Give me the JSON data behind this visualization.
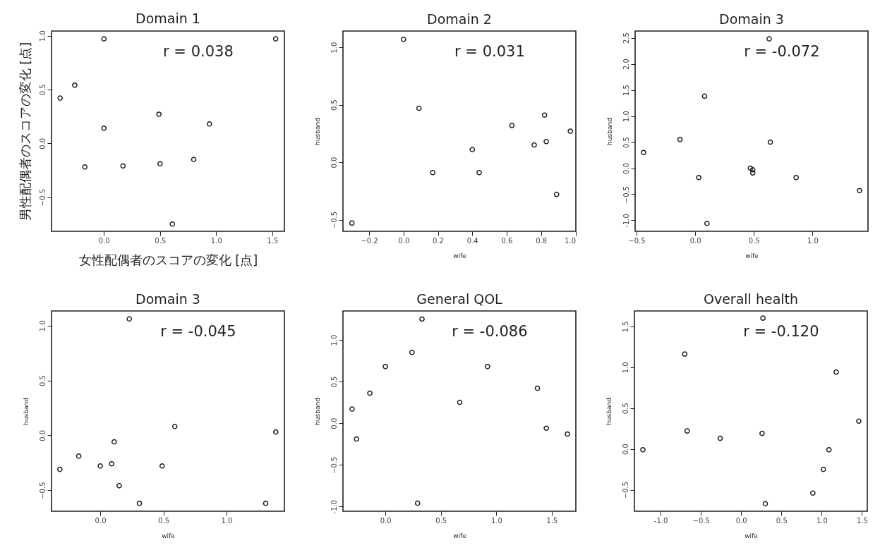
{
  "chart_data": [
    {
      "type": "scatter",
      "title": "Domain 1",
      "xlabel": "女性配偶者のスコアの変化 [点]",
      "ylabel": "男性配偶者のスコアの変化 [点]",
      "color": "#231f20",
      "marker": "circle",
      "grid": false,
      "annotations": [
        "r = 0.038"
      ],
      "x": [
        -0.39,
        -0.26,
        0.0,
        0.0,
        -0.17,
        0.17,
        0.49,
        0.5,
        0.61,
        0.8,
        0.94,
        1.53
      ],
      "values": [
        0.42,
        0.54,
        0.97,
        0.14,
        -0.22,
        -0.21,
        0.27,
        -0.19,
        -0.75,
        -0.15,
        0.18,
        0.97
      ],
      "xlim": [
        -0.467,
        1.608
      ],
      "xticks": [
        {
          "value": 0,
          "label": "0.0"
        },
        0.5,
        {
          "value": 1,
          "label": "1.0"
        },
        1.5
      ],
      "ylim": [
        -0.817,
        1.043
      ],
      "yticks": [
        -0.5,
        {
          "value": 0,
          "label": "0.0"
        },
        0.5,
        {
          "value": 1,
          "label": "1.0"
        }
      ]
    },
    {
      "type": "scatter",
      "title": "Domain 2",
      "xlabel": "wife",
      "ylabel": "husband",
      "color": "#231f20",
      "marker": "circle",
      "grid": false,
      "annotations": [
        "r = 0.031"
      ],
      "x": [
        -0.3,
        0.0,
        0.09,
        0.17,
        0.4,
        0.44,
        0.63,
        0.76,
        0.82,
        0.83,
        0.89,
        0.97
      ],
      "values": [
        -0.53,
        1.07,
        0.47,
        -0.09,
        0.11,
        -0.09,
        0.32,
        0.15,
        0.41,
        0.18,
        -0.28,
        0.27
      ],
      "xlim": [
        -0.352,
        1.002
      ],
      "xticks": [
        -0.2,
        {
          "value": 0,
          "label": "0.0"
        },
        0.2,
        0.4,
        0.6,
        0.8,
        {
          "value": 1,
          "label": "1.0"
        }
      ],
      "ylim": [
        -0.601,
        1.142
      ],
      "yticks": [
        -0.5,
        {
          "value": 0,
          "label": "0.0"
        },
        0.5,
        {
          "value": 1,
          "label": "1.0"
        }
      ]
    },
    {
      "type": "scatter",
      "title": "Domain 3",
      "xlabel": "wife",
      "ylabel": "husband",
      "color": "#231f20",
      "marker": "circle",
      "grid": false,
      "annotations": [
        "r = -0.072"
      ],
      "x": [
        -0.44,
        -0.13,
        0.03,
        0.08,
        0.1,
        0.47,
        0.49,
        0.49,
        0.63,
        0.64,
        0.86,
        1.4
      ],
      "values": [
        0.3,
        0.55,
        -0.18,
        1.38,
        -1.06,
        0.0,
        -0.03,
        -0.09,
        2.48,
        0.5,
        -0.18,
        -0.43
      ],
      "xlim": [
        -0.512,
        1.472
      ],
      "xticks": [
        -0.5,
        {
          "value": 0,
          "label": "0.0"
        },
        0.5,
        {
          "value": 1,
          "label": "1.0"
        }
      ],
      "ylim": [
        -1.21,
        2.63
      ],
      "yticks": [
        {
          "value": -1,
          "label": "-1.0"
        },
        -0.5,
        {
          "value": 0,
          "label": "0.0"
        },
        0.5,
        {
          "value": 1,
          "label": "1.0"
        },
        1.5,
        {
          "value": 2,
          "label": "2.0"
        },
        2.5
      ]
    },
    {
      "type": "scatter",
      "title": "Domain 3",
      "xlabel": "wife",
      "ylabel": "husband",
      "color": "#231f20",
      "marker": "circle",
      "grid": false,
      "annotations": [
        "r = -0.045"
      ],
      "x": [
        -0.32,
        -0.17,
        0.0,
        0.09,
        0.11,
        0.15,
        0.23,
        0.31,
        0.49,
        0.59,
        1.31,
        1.39
      ],
      "values": [
        -0.31,
        -0.19,
        -0.28,
        -0.26,
        -0.06,
        -0.46,
        1.06,
        -0.62,
        -0.28,
        0.08,
        -0.62,
        0.03
      ],
      "xlim": [
        -0.386,
        1.458
      ],
      "xticks": [
        {
          "value": 0,
          "label": "0.0"
        },
        0.5,
        {
          "value": 1,
          "label": "1.0"
        }
      ],
      "ylim": [
        -0.692,
        1.133
      ],
      "yticks": [
        -0.5,
        {
          "value": 0,
          "label": "0.0"
        },
        0.5,
        {
          "value": 1,
          "label": "1.0"
        }
      ]
    },
    {
      "type": "scatter",
      "title": "General QOL",
      "xlabel": "wife",
      "ylabel": "husband",
      "color": "#231f20",
      "marker": "circle",
      "grid": false,
      "annotations": [
        "r = -0.086"
      ],
      "x": [
        -0.3,
        -0.26,
        -0.14,
        0.0,
        0.24,
        0.29,
        0.33,
        0.67,
        0.92,
        1.37,
        1.45,
        1.64
      ],
      "values": [
        0.17,
        -0.19,
        0.36,
        0.68,
        0.85,
        -0.96,
        1.25,
        0.25,
        0.68,
        0.42,
        -0.06,
        -0.13
      ],
      "xlim": [
        -0.382,
        1.716
      ],
      "xticks": [
        {
          "value": 0,
          "label": "0.0"
        },
        0.5,
        {
          "value": 1,
          "label": "1.0"
        },
        1.5
      ],
      "ylim": [
        -1.056,
        1.347
      ],
      "yticks": [
        {
          "value": -1,
          "label": "-1.0"
        },
        -0.5,
        {
          "value": 0,
          "label": "0.0"
        },
        0.5,
        {
          "value": 1,
          "label": "1.0"
        }
      ]
    },
    {
      "type": "scatter",
      "title": "Overall health",
      "xlabel": "wife",
      "ylabel": "husband",
      "color": "#231f20",
      "marker": "circle",
      "grid": false,
      "annotations": [
        "r = -0.120"
      ],
      "x": [
        -1.22,
        -0.7,
        -0.67,
        -0.26,
        0.26,
        0.27,
        0.3,
        0.89,
        1.02,
        1.09,
        1.18,
        1.46
      ],
      "values": [
        -0.01,
        1.16,
        0.22,
        0.13,
        0.19,
        1.6,
        -0.67,
        -0.54,
        -0.25,
        -0.01,
        0.94,
        0.34
      ],
      "xlim": [
        -1.325,
        1.566
      ],
      "xticks": [
        {
          "value": -1,
          "label": "-1.0"
        },
        -0.5,
        {
          "value": 0,
          "label": "0.0"
        },
        0.5,
        {
          "value": 1,
          "label": "1.0"
        },
        1.5
      ],
      "ylim": [
        -0.762,
        1.688
      ],
      "yticks": [
        -0.5,
        {
          "value": 0,
          "label": "0.0"
        },
        0.5,
        {
          "value": 1,
          "label": "1.0"
        },
        1.5
      ]
    }
  ]
}
